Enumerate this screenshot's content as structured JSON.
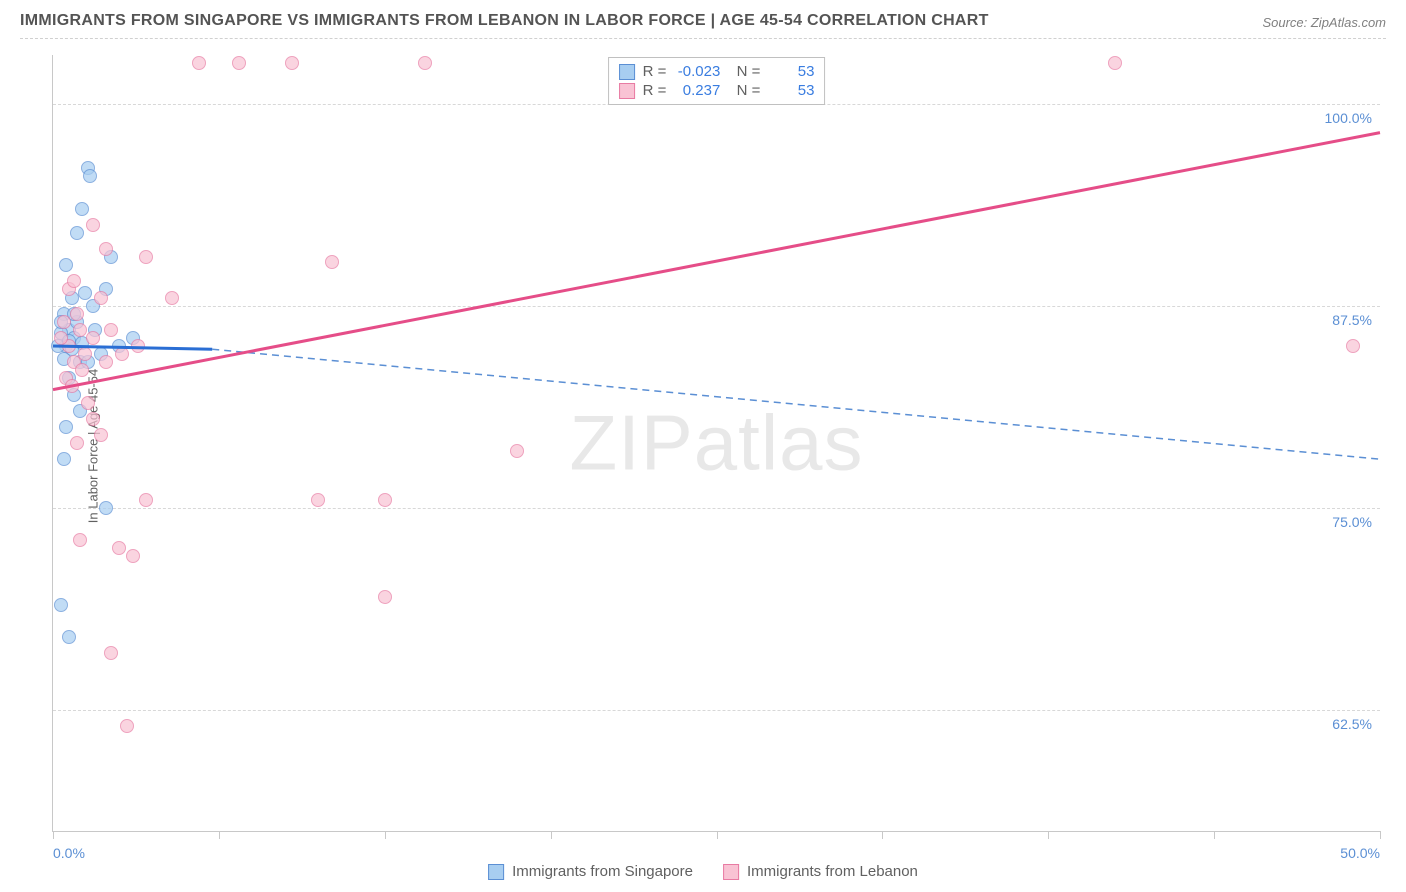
{
  "title": "IMMIGRANTS FROM SINGAPORE VS IMMIGRANTS FROM LEBANON IN LABOR FORCE | AGE 45-54 CORRELATION CHART",
  "source": "Source: ZipAtlas.com",
  "y_axis_label": "In Labor Force | Age 45-54",
  "watermark_bold": "ZIP",
  "watermark_light": "atlas",
  "chart": {
    "type": "scatter-correlation",
    "x_min": 0.0,
    "x_max": 50.0,
    "y_min": 55.0,
    "y_max": 103.0,
    "y_ticks": [
      62.5,
      75.0,
      87.5,
      100.0
    ],
    "y_tick_labels": [
      "62.5%",
      "75.0%",
      "87.5%",
      "100.0%"
    ],
    "x_ticks": [
      0.0,
      6.25,
      12.5,
      18.75,
      25.0,
      31.25,
      37.5,
      43.75,
      50.0
    ],
    "x_tick_labels": {
      "0": "0.0%",
      "8": "50.0%"
    },
    "background_color": "#ffffff",
    "grid_color": "#d8d8d8",
    "axis_color": "#c8c8c8",
    "axis_label_color": "#5b8fd4"
  },
  "series": [
    {
      "name": "Immigrants from Singapore",
      "R": "-0.023",
      "N": "53",
      "marker_fill": "#a8cef1",
      "marker_stroke": "#5b8fd4",
      "trend_solid": {
        "x1": 0,
        "y1": 85.0,
        "x2": 6.0,
        "y2": 84.8,
        "color": "#2a6ed4",
        "width": 3
      },
      "trend_dash": {
        "x1": 6.0,
        "y1": 84.8,
        "x2": 50.0,
        "y2": 78.0,
        "color": "#5b8fd4",
        "width": 1.5
      },
      "points": [
        [
          0.5,
          85.0
        ],
        [
          0.4,
          84.2
        ],
        [
          0.6,
          86.0
        ],
        [
          0.8,
          85.5
        ],
        [
          1.0,
          84.0
        ],
        [
          0.3,
          85.8
        ],
        [
          0.7,
          88.0
        ],
        [
          1.2,
          88.3
        ],
        [
          0.9,
          92.0
        ],
        [
          1.1,
          93.5
        ],
        [
          1.3,
          96.0
        ],
        [
          1.4,
          95.5
        ],
        [
          0.5,
          90.0
        ],
        [
          2.0,
          88.5
        ],
        [
          2.2,
          90.5
        ],
        [
          2.5,
          85.0
        ],
        [
          3.0,
          85.5
        ],
        [
          0.6,
          83.0
        ],
        [
          0.8,
          82.0
        ],
        [
          1.5,
          87.5
        ],
        [
          0.4,
          87.0
        ],
        [
          1.8,
          84.5
        ],
        [
          0.3,
          69.0
        ],
        [
          0.6,
          67.0
        ],
        [
          1.0,
          81.0
        ],
        [
          0.5,
          80.0
        ],
        [
          2.0,
          75.0
        ],
        [
          0.2,
          85.0
        ],
        [
          0.9,
          86.5
        ],
        [
          1.6,
          86.0
        ],
        [
          0.7,
          84.8
        ],
        [
          1.1,
          85.2
        ],
        [
          0.4,
          78.0
        ],
        [
          0.3,
          86.5
        ],
        [
          1.3,
          84.0
        ],
        [
          0.8,
          87.0
        ],
        [
          0.6,
          85.3
        ]
      ]
    },
    {
      "name": "Immigrants from Lebanon",
      "R": "0.237",
      "N": "53",
      "marker_fill": "#f9c3d4",
      "marker_stroke": "#e87ba3",
      "trend_solid": {
        "x1": 0,
        "y1": 82.3,
        "x2": 50.0,
        "y2": 98.2,
        "color": "#e54d88",
        "width": 3
      },
      "trend_dash": null,
      "points": [
        [
          0.6,
          85.0
        ],
        [
          0.8,
          84.0
        ],
        [
          1.0,
          86.0
        ],
        [
          0.5,
          83.0
        ],
        [
          1.2,
          84.5
        ],
        [
          0.7,
          82.5
        ],
        [
          1.5,
          85.5
        ],
        [
          0.9,
          87.0
        ],
        [
          2.0,
          84.0
        ],
        [
          0.4,
          86.5
        ],
        [
          1.8,
          88.0
        ],
        [
          1.1,
          83.5
        ],
        [
          0.3,
          85.5
        ],
        [
          2.2,
          86.0
        ],
        [
          2.5,
          72.5
        ],
        [
          3.0,
          72.0
        ],
        [
          3.5,
          75.5
        ],
        [
          2.0,
          91.0
        ],
        [
          3.5,
          90.5
        ],
        [
          4.5,
          88.0
        ],
        [
          1.5,
          92.5
        ],
        [
          5.5,
          102.5
        ],
        [
          7.0,
          102.5
        ],
        [
          9.0,
          102.5
        ],
        [
          14.0,
          102.5
        ],
        [
          10.5,
          90.2
        ],
        [
          10.0,
          75.5
        ],
        [
          12.5,
          75.5
        ],
        [
          17.5,
          78.5
        ],
        [
          12.5,
          69.5
        ],
        [
          40.0,
          102.5
        ],
        [
          49.0,
          85.0
        ],
        [
          1.8,
          79.5
        ],
        [
          2.2,
          66.0
        ],
        [
          2.8,
          61.5
        ],
        [
          1.0,
          73.0
        ],
        [
          1.5,
          80.5
        ],
        [
          0.6,
          88.5
        ],
        [
          0.8,
          89.0
        ],
        [
          1.3,
          81.5
        ],
        [
          2.6,
          84.5
        ],
        [
          3.2,
          85.0
        ],
        [
          0.9,
          79.0
        ]
      ]
    }
  ],
  "legend": {
    "R_label": "R =",
    "N_label": "N ="
  },
  "bottom_legend": [
    {
      "label": "Immigrants from Singapore",
      "fill": "#a8cef1",
      "stroke": "#5b8fd4"
    },
    {
      "label": "Immigrants from Lebanon",
      "fill": "#f9c3d4",
      "stroke": "#e87ba3"
    }
  ]
}
